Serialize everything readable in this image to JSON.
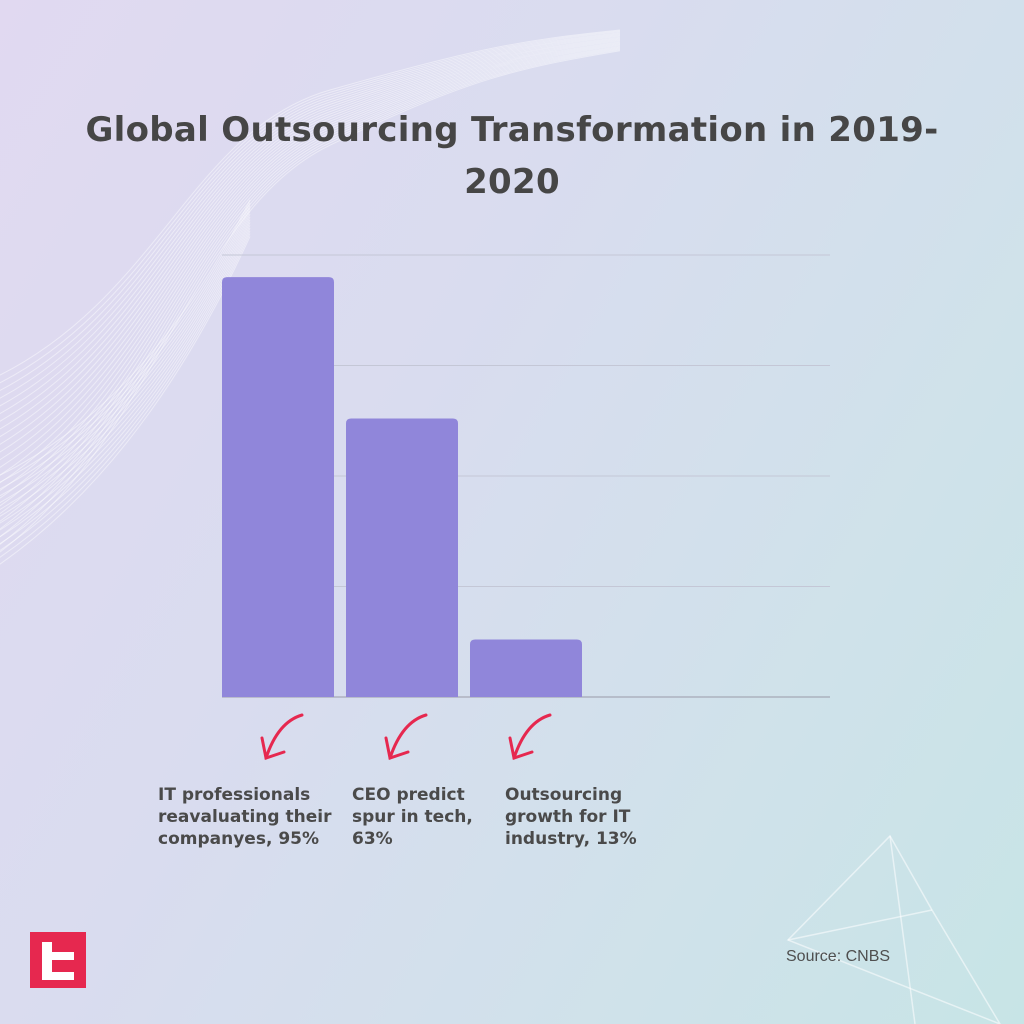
{
  "chart_data": {
    "type": "bar",
    "title": "Global Outsourcing Transformation in 2019-2020",
    "categories": [
      "IT professionals reavaluating their companyes, 95%",
      "CEO predict spur in tech, 63%",
      "Outsourcing growth for IT industry, 13%"
    ],
    "values": [
      95,
      63,
      13
    ],
    "ylim": [
      0,
      100
    ],
    "grid": true,
    "legend": "none",
    "bar_color": "#9086da",
    "arrow_color": "#e6284f"
  },
  "source": "Source: CNBS",
  "logo_icon": "brand-logo-icon"
}
